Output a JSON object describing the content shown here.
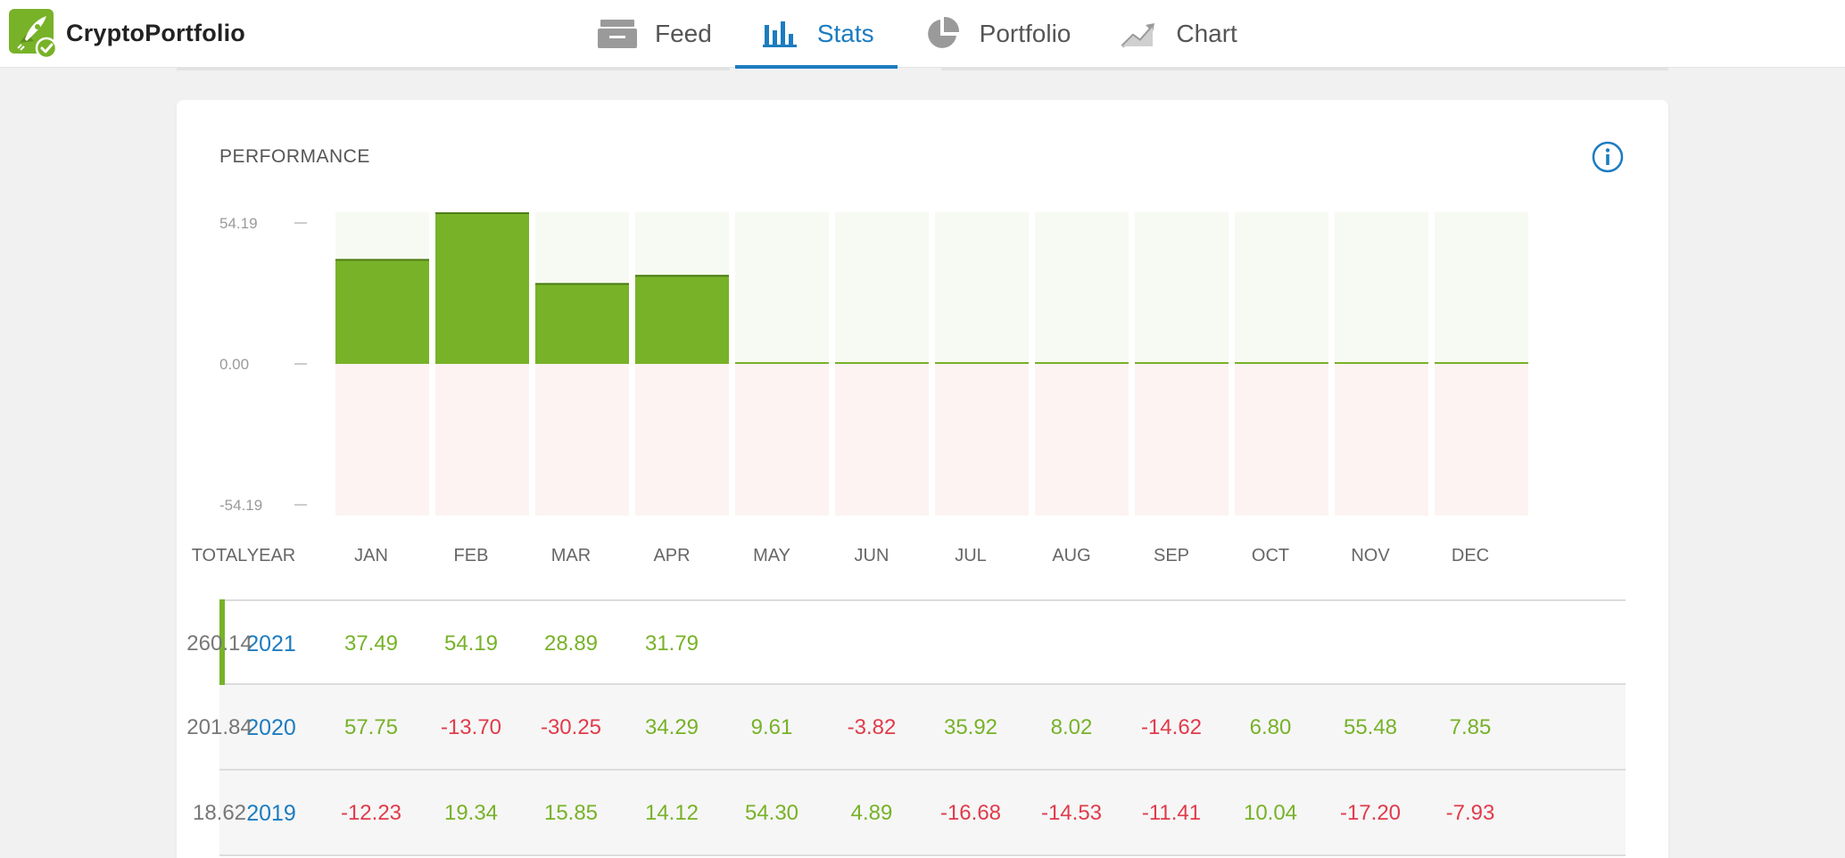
{
  "app": {
    "name": "CryptoPortfolio"
  },
  "nav": {
    "tabs": [
      {
        "label": "Feed",
        "icon": "feed-icon",
        "active": false
      },
      {
        "label": "Stats",
        "icon": "stats-icon",
        "active": true
      },
      {
        "label": "Portfolio",
        "icon": "portfolio-icon",
        "active": false
      },
      {
        "label": "Chart",
        "icon": "chart-icon",
        "active": false
      }
    ]
  },
  "performance": {
    "title": "PERFORMANCE",
    "info_icon": "info-icon"
  },
  "chart_data": {
    "type": "bar",
    "categories": [
      "JAN",
      "FEB",
      "MAR",
      "APR",
      "MAY",
      "JUN",
      "JUL",
      "AUG",
      "SEP",
      "OCT",
      "NOV",
      "DEC"
    ],
    "values": [
      37.49,
      54.19,
      28.89,
      31.79,
      0,
      0,
      0,
      0,
      0,
      0,
      0,
      0
    ],
    "ylim": [
      -54.19,
      54.19
    ],
    "yticks": [
      "54.19",
      "0.00",
      "-54.19"
    ],
    "colors": {
      "positive": "#77b228",
      "positive_bg": "#f7faf2",
      "negative_bg": "#fdf3f3"
    }
  },
  "table": {
    "headers": [
      "YEAR",
      "JAN",
      "FEB",
      "MAR",
      "APR",
      "MAY",
      "JUN",
      "JUL",
      "AUG",
      "SEP",
      "OCT",
      "NOV",
      "DEC",
      "TOTAL"
    ],
    "rows": [
      {
        "year": "2021",
        "months": [
          "37.49",
          "54.19",
          "28.89",
          "31.79",
          "",
          "",
          "",
          "",
          "",
          "",
          "",
          ""
        ],
        "total": "260.14"
      },
      {
        "year": "2020",
        "months": [
          "57.75",
          "-13.70",
          "-30.25",
          "34.29",
          "9.61",
          "-3.82",
          "35.92",
          "8.02",
          "-14.62",
          "6.80",
          "55.48",
          "7.85"
        ],
        "total": "201.84"
      },
      {
        "year": "2019",
        "months": [
          "-12.23",
          "19.34",
          "15.85",
          "14.12",
          "54.30",
          "4.89",
          "-16.68",
          "-14.53",
          "-11.41",
          "10.04",
          "-17.20",
          "-7.93"
        ],
        "total": "18.62"
      }
    ]
  },
  "colors": {
    "accent": "#1c7cc0",
    "positive": "#77b228",
    "negative": "#e03b4b"
  }
}
